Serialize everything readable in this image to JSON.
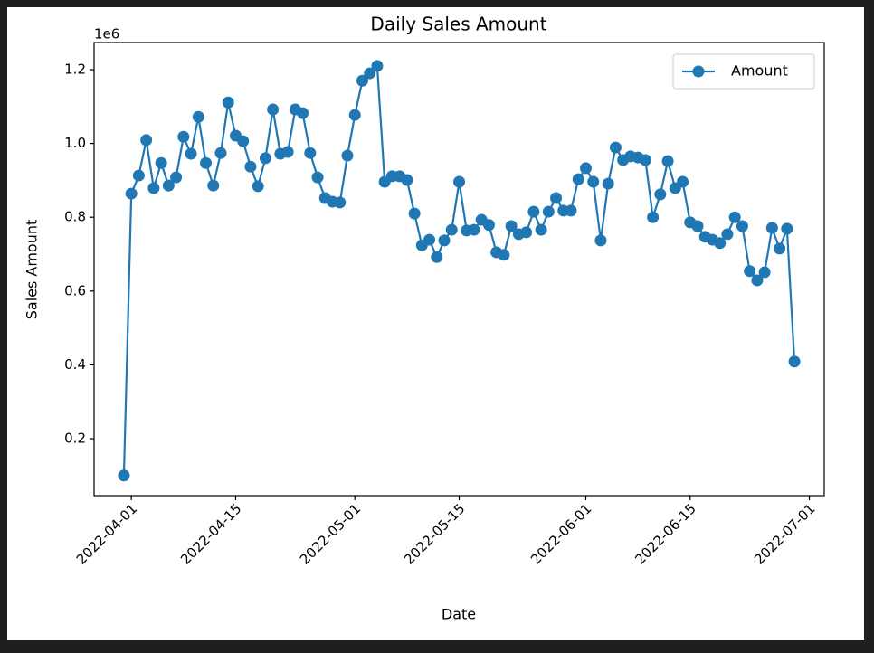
{
  "chart_data": {
    "type": "line",
    "title": "Daily Sales Amount",
    "x_label": "Date",
    "y_label": "Sales Amount",
    "y_offset_label": "1e6",
    "series": [
      {
        "name": "Amount",
        "color": "#1f77b4",
        "values": [
          0.1,
          0.864,
          0.913,
          1.009,
          0.879,
          0.947,
          0.886,
          0.908,
          1.018,
          0.972,
          1.072,
          0.947,
          0.886,
          0.974,
          1.111,
          1.021,
          1.006,
          0.937,
          0.884,
          0.96,
          1.092,
          0.972,
          0.977,
          1.092,
          1.082,
          0.974,
          0.908,
          0.852,
          0.842,
          0.84,
          0.967,
          1.077,
          1.17,
          1.19,
          1.21,
          0.896,
          0.911,
          0.911,
          0.901,
          0.81,
          0.724,
          0.739,
          0.692,
          0.737,
          0.766,
          0.896,
          0.764,
          0.766,
          0.793,
          0.779,
          0.705,
          0.698,
          0.776,
          0.754,
          0.759,
          0.815,
          0.766,
          0.815,
          0.852,
          0.818,
          0.818,
          0.903,
          0.933,
          0.896,
          0.737,
          0.891,
          0.989,
          0.955,
          0.965,
          0.962,
          0.955,
          0.8,
          0.862,
          0.952,
          0.879,
          0.896,
          0.786,
          0.776,
          0.747,
          0.739,
          0.73,
          0.754,
          0.8,
          0.776,
          0.654,
          0.629,
          0.651,
          0.771,
          0.715,
          0.769,
          0.409
        ]
      }
    ],
    "x": [
      "2022-03-31",
      "2022-04-01",
      "2022-04-02",
      "2022-04-03",
      "2022-04-04",
      "2022-04-05",
      "2022-04-06",
      "2022-04-07",
      "2022-04-08",
      "2022-04-09",
      "2022-04-10",
      "2022-04-11",
      "2022-04-12",
      "2022-04-13",
      "2022-04-14",
      "2022-04-15",
      "2022-04-16",
      "2022-04-17",
      "2022-04-18",
      "2022-04-19",
      "2022-04-20",
      "2022-04-21",
      "2022-04-22",
      "2022-04-23",
      "2022-04-24",
      "2022-04-25",
      "2022-04-26",
      "2022-04-27",
      "2022-04-28",
      "2022-04-29",
      "2022-04-30",
      "2022-05-01",
      "2022-05-02",
      "2022-05-03",
      "2022-05-04",
      "2022-05-05",
      "2022-05-06",
      "2022-05-07",
      "2022-05-08",
      "2022-05-09",
      "2022-05-10",
      "2022-05-11",
      "2022-05-12",
      "2022-05-13",
      "2022-05-14",
      "2022-05-15",
      "2022-05-16",
      "2022-05-17",
      "2022-05-18",
      "2022-05-19",
      "2022-05-20",
      "2022-05-21",
      "2022-05-22",
      "2022-05-23",
      "2022-05-24",
      "2022-05-25",
      "2022-05-26",
      "2022-05-27",
      "2022-05-28",
      "2022-05-29",
      "2022-05-30",
      "2022-05-31",
      "2022-06-01",
      "2022-06-02",
      "2022-06-03",
      "2022-06-04",
      "2022-06-05",
      "2022-06-06",
      "2022-06-07",
      "2022-06-08",
      "2022-06-09",
      "2022-06-10",
      "2022-06-11",
      "2022-06-12",
      "2022-06-13",
      "2022-06-14",
      "2022-06-15",
      "2022-06-16",
      "2022-06-17",
      "2022-06-18",
      "2022-06-19",
      "2022-06-20",
      "2022-06-21",
      "2022-06-22",
      "2022-06-23",
      "2022-06-24",
      "2022-06-25",
      "2022-06-26",
      "2022-06-27",
      "2022-06-28",
      "2022-06-29"
    ],
    "xlim": [
      "2022-03-27",
      "2022-07-03"
    ],
    "xticks": [
      "2022-04-01",
      "2022-04-15",
      "2022-05-01",
      "2022-05-15",
      "2022-06-01",
      "2022-06-15",
      "2022-07-01"
    ],
    "ylim": [
      0.0456,
      1.2735
    ],
    "yticks": [
      0.2,
      0.4,
      0.6,
      0.8,
      {
        "value": 1.0,
        "label": "1.0"
      },
      1.2
    ],
    "grid": false,
    "legend": "upper right",
    "markers": true
  }
}
